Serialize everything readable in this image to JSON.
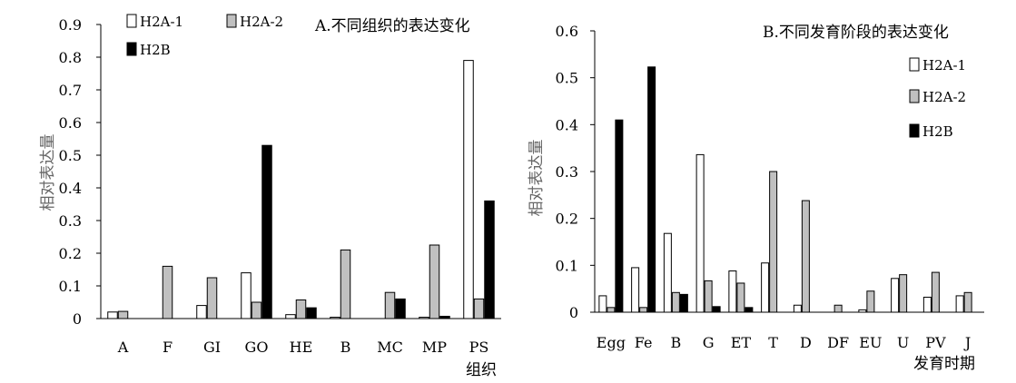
{
  "chart_data": [
    {
      "type": "bar",
      "title": "A.不同组织的表达变化",
      "xlabel": "组织",
      "ylabel": "相对表达量",
      "ylim": [
        0,
        0.9
      ],
      "yticks": [
        "0",
        "0.1",
        "0.2",
        "0.3",
        "0.4",
        "0.5",
        "0.6",
        "0.7",
        "0.8",
        "0.9"
      ],
      "grid": false,
      "legend_position": "top-left",
      "categories": [
        "A",
        "F",
        "GI",
        "GO",
        "HE",
        "B",
        "MC",
        "MP",
        "PS"
      ],
      "series": [
        {
          "name": "H2A-1",
          "color": "#ffffff",
          "values": [
            0.02,
            0,
            0.04,
            0.14,
            0.012,
            0.004,
            0,
            0.004,
            0.79
          ]
        },
        {
          "name": "H2A-2",
          "color": "#c0c0c0",
          "values": [
            0.022,
            0.16,
            0.125,
            0.05,
            0.057,
            0.21,
            0.08,
            0.225,
            0.06
          ]
        },
        {
          "name": "H2B",
          "color": "#000000",
          "values": [
            0,
            0,
            0,
            0.53,
            0.033,
            0,
            0.06,
            0.007,
            0.36
          ]
        }
      ]
    },
    {
      "type": "bar",
      "title": "B.不同发育阶段的表达变化",
      "xlabel": "发育时期",
      "ylabel": "相对表达量",
      "ylim": [
        0,
        0.6
      ],
      "yticks": [
        "0",
        "0.1",
        "0.2",
        "0.3",
        "0.4",
        "0.5",
        "0.6"
      ],
      "grid": false,
      "legend_position": "top-right",
      "categories": [
        "Egg",
        "Fe",
        "B",
        "G",
        "ET",
        "T",
        "D",
        "DF",
        "EU",
        "U",
        "PV",
        "J"
      ],
      "series": [
        {
          "name": "H2A-1",
          "color": "#ffffff",
          "values": [
            0.035,
            0.095,
            0.168,
            0.336,
            0.088,
            0.105,
            0.015,
            0,
            0.005,
            0.072,
            0.032,
            0.035
          ]
        },
        {
          "name": "H2A-2",
          "color": "#c0c0c0",
          "values": [
            0.01,
            0.01,
            0.042,
            0.067,
            0.062,
            0.3,
            0.238,
            0.015,
            0.045,
            0.08,
            0.085,
            0.042
          ]
        },
        {
          "name": "H2B",
          "color": "#000000",
          "values": [
            0.41,
            0.523,
            0.038,
            0.012,
            0.01,
            0,
            0,
            0,
            0,
            0,
            0,
            0
          ]
        }
      ]
    }
  ]
}
